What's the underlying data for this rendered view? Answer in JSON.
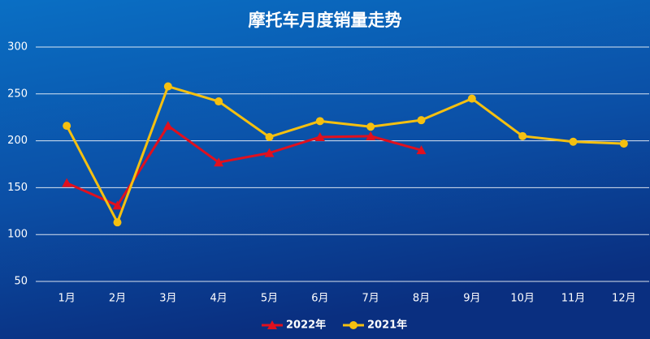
{
  "chart_data": {
    "type": "line",
    "title": "摩托车月度销量走势",
    "categories": [
      "1月",
      "2月",
      "3月",
      "4月",
      "5月",
      "6月",
      "7月",
      "8月",
      "9月",
      "10月",
      "11月",
      "12月"
    ],
    "series": [
      {
        "name": "2022年",
        "color": "#e0101e",
        "marker": "triangle",
        "values": [
          155,
          131,
          216,
          177,
          187,
          204,
          205,
          190,
          null,
          null,
          null,
          null
        ]
      },
      {
        "name": "2021年",
        "color": "#f5c010",
        "marker": "circle",
        "values": [
          216,
          113,
          258,
          242,
          204,
          221,
          215,
          222,
          245,
          205,
          199,
          197
        ]
      }
    ],
    "ylim": [
      50,
      300
    ],
    "yticks": [
      50,
      100,
      150,
      200,
      250,
      300
    ],
    "grid": true,
    "legend": "bottom"
  }
}
